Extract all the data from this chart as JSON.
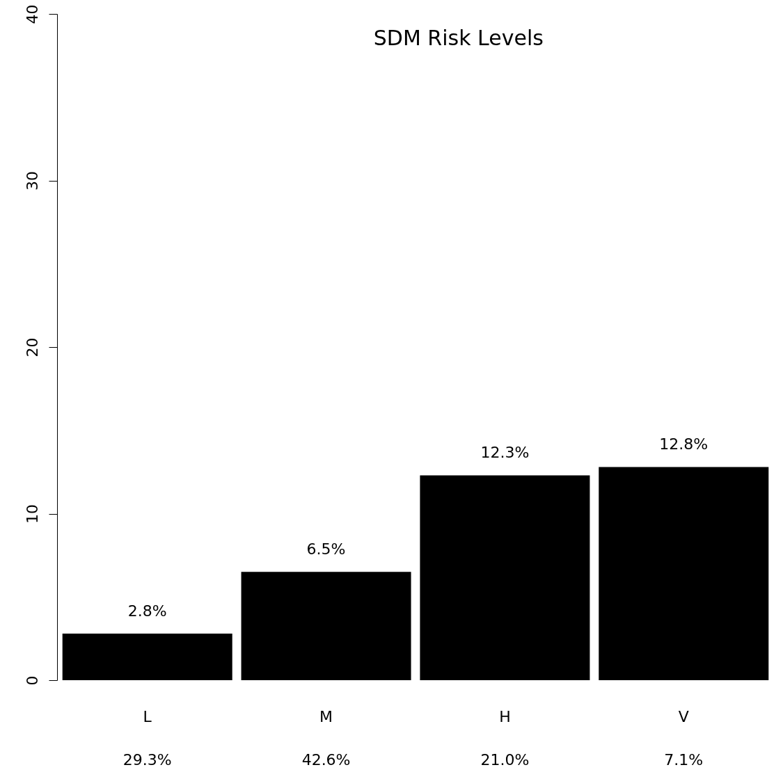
{
  "chart_data": {
    "type": "bar",
    "title": "SDM Risk Levels",
    "categories": [
      "L",
      "M",
      "H",
      "V"
    ],
    "values": [
      2.8,
      6.5,
      12.3,
      12.8
    ],
    "value_labels": [
      "2.8%",
      "6.5%",
      "12.3%",
      "12.8%"
    ],
    "color": "#000000",
    "ylim": [
      0,
      40
    ],
    "yticks": [
      0,
      10,
      20,
      30,
      40
    ],
    "grid": false,
    "annotations": [
      "29.3%",
      "42.6%",
      "21.0%",
      "7.1%"
    ]
  }
}
